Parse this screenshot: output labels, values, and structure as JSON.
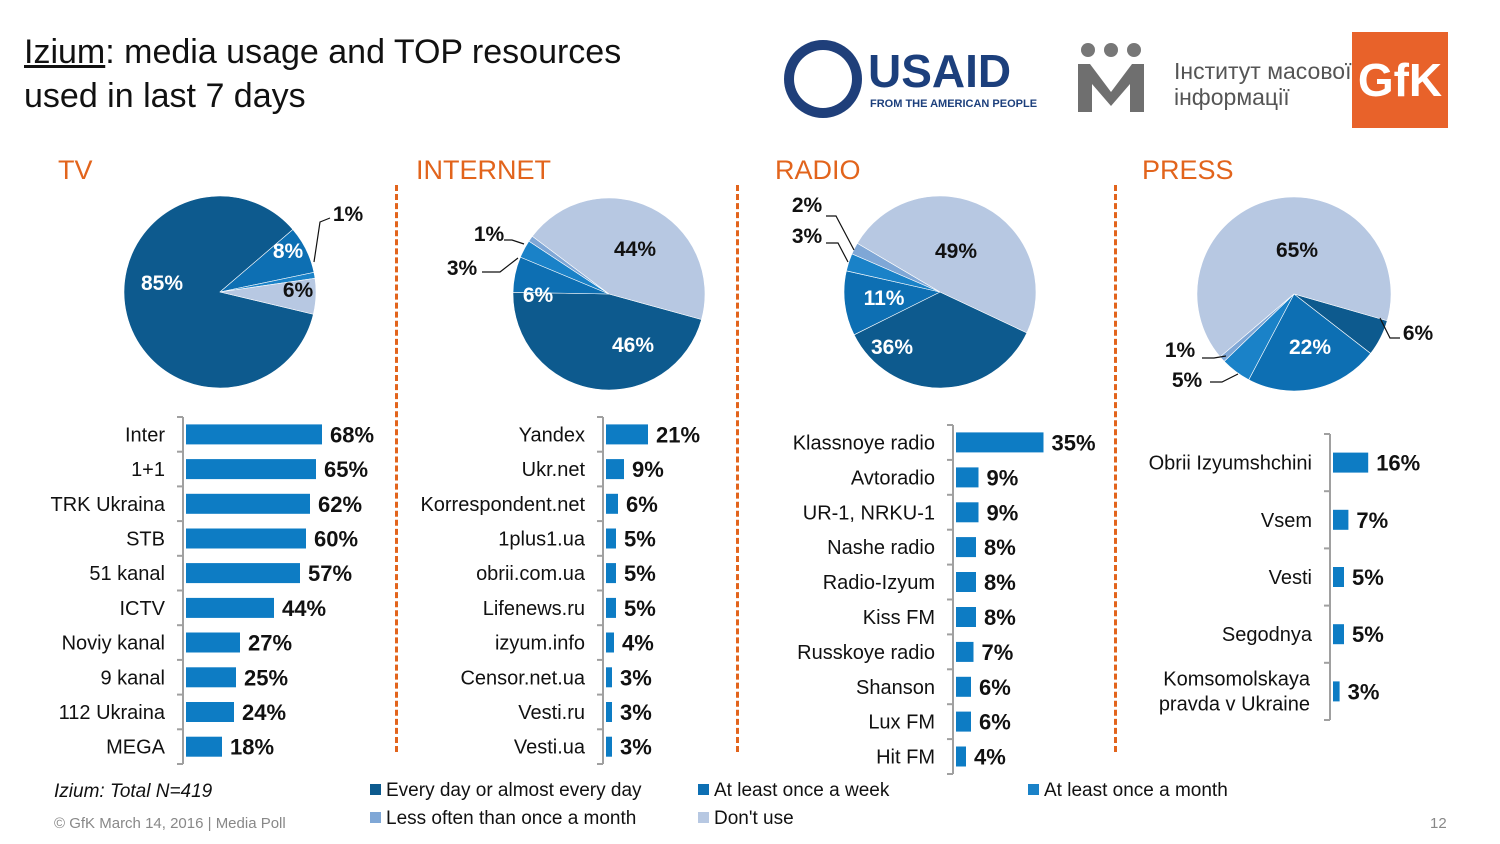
{
  "title": {
    "underlined": "Izium",
    "rest_line1": ": media usage and TOP resources",
    "line2": "used in last 7 days"
  },
  "logos": {
    "usaid_word": "USAID",
    "usaid_sub": "FROM THE AMERICAN PEOPLE",
    "imi_line1": "Інститут масової",
    "imi_line2": "інформації",
    "gfk": "GfK"
  },
  "colors": {
    "every_day": "#0d5a8e",
    "once_week": "#0d6fb3",
    "once_month": "#1a82c8",
    "less_often": "#7fa7d6",
    "dont_use": "#b7c8e2",
    "bar": "#0d7cc4",
    "accent": "#e2641c"
  },
  "chart_data": [
    {
      "type": "pie",
      "title": "TV",
      "slices": [
        {
          "label": "Every day or almost every day",
          "value": 85,
          "text": "85%"
        },
        {
          "label": "At least once a week",
          "value": 8,
          "text": "8%"
        },
        {
          "label": "At least once a month",
          "value": 1,
          "text": "1%"
        },
        {
          "label": "Less often than once a month",
          "value": 0,
          "text": ""
        },
        {
          "label": "Don't use",
          "value": 6,
          "text": "6%"
        }
      ]
    },
    {
      "type": "bar",
      "title": "TV",
      "categories": [
        "Inter",
        "1+1",
        "TRK Ukraina",
        "STB",
        "51 kanal",
        "ICTV",
        "Noviy kanal",
        "9 kanal",
        "112 Ukraina",
        "MEGA"
      ],
      "values": [
        68,
        65,
        62,
        60,
        57,
        44,
        27,
        25,
        24,
        18
      ],
      "labels": [
        "68%",
        "65%",
        "62%",
        "60%",
        "57%",
        "44%",
        "27%",
        "25%",
        "24%",
        "18%"
      ]
    },
    {
      "type": "pie",
      "title": "INTERNET",
      "slices": [
        {
          "label": "Every day or almost every day",
          "value": 46,
          "text": "46%"
        },
        {
          "label": "At least once a week",
          "value": 6,
          "text": "6%"
        },
        {
          "label": "At least once a month",
          "value": 3,
          "text": "3%"
        },
        {
          "label": "Less often than once a month",
          "value": 1,
          "text": "1%"
        },
        {
          "label": "Don't use",
          "value": 44,
          "text": "44%"
        }
      ]
    },
    {
      "type": "bar",
      "title": "INTERNET",
      "categories": [
        "Yandex",
        "Ukr.net",
        "Korrespondent.net",
        "1plus1.ua",
        "obrii.com.ua",
        "Lifenews.ru",
        "izyum.info",
        "Censor.net.ua",
        "Vesti.ru",
        "Vesti.ua"
      ],
      "values": [
        21,
        9,
        6,
        5,
        5,
        5,
        4,
        3,
        3,
        3
      ],
      "labels": [
        "21%",
        "9%",
        "6%",
        "5%",
        "5%",
        "5%",
        "4%",
        "3%",
        "3%",
        "3%"
      ]
    },
    {
      "type": "pie",
      "title": "RADIO",
      "slices": [
        {
          "label": "Every day or almost every day",
          "value": 36,
          "text": "36%"
        },
        {
          "label": "At least once a week",
          "value": 11,
          "text": "11%"
        },
        {
          "label": "At least once a month",
          "value": 3,
          "text": "3%"
        },
        {
          "label": "Less often than once a month",
          "value": 2,
          "text": "2%"
        },
        {
          "label": "Don't use",
          "value": 49,
          "text": "49%"
        }
      ]
    },
    {
      "type": "bar",
      "title": "RADIO",
      "categories": [
        "Klassnoye radio",
        "Avtoradio",
        "UR-1, NRKU-1",
        "Nashe radio",
        "Radio-Izyum",
        "Kiss FM",
        "Russkoye radio",
        "Shanson",
        "Lux FM",
        "Hit FM"
      ],
      "values": [
        35,
        9,
        9,
        8,
        8,
        8,
        7,
        6,
        6,
        4
      ],
      "labels": [
        "35%",
        "9%",
        "9%",
        "8%",
        "8%",
        "8%",
        "7%",
        "6%",
        "6%",
        "4%"
      ]
    },
    {
      "type": "pie",
      "title": "PRESS",
      "slices": [
        {
          "label": "Every day or almost every day",
          "value": 6,
          "text": "6%"
        },
        {
          "label": "At least once a week",
          "value": 22,
          "text": "22%"
        },
        {
          "label": "At least once a month",
          "value": 5,
          "text": "5%"
        },
        {
          "label": "Less often than once a month",
          "value": 1,
          "text": "1%"
        },
        {
          "label": "Don't use",
          "value": 65,
          "text": "65%"
        }
      ]
    },
    {
      "type": "bar",
      "title": "PRESS",
      "categories": [
        "Obrii Izyumshchini",
        "Vsem",
        "Vesti",
        "Segodnya",
        "Komsomolskaya pravda v Ukraine"
      ],
      "values": [
        16,
        7,
        5,
        5,
        3
      ],
      "labels": [
        "16%",
        "7%",
        "5%",
        "5%",
        "3%"
      ]
    }
  ],
  "legend": [
    {
      "label": "Every day or almost every day",
      "color": "#0d5a8e"
    },
    {
      "label": "At least once a week",
      "color": "#0d6fb3"
    },
    {
      "label": "At least once a month",
      "color": "#1a82c8"
    },
    {
      "label": "Less often than once a month",
      "color": "#7fa7d6"
    },
    {
      "label": "Don't use",
      "color": "#b7c8e2"
    }
  ],
  "footer": {
    "note": "Izium: Total N=419",
    "copyright": "© GfK March 14, 2016 | Media Poll",
    "page": "12"
  }
}
